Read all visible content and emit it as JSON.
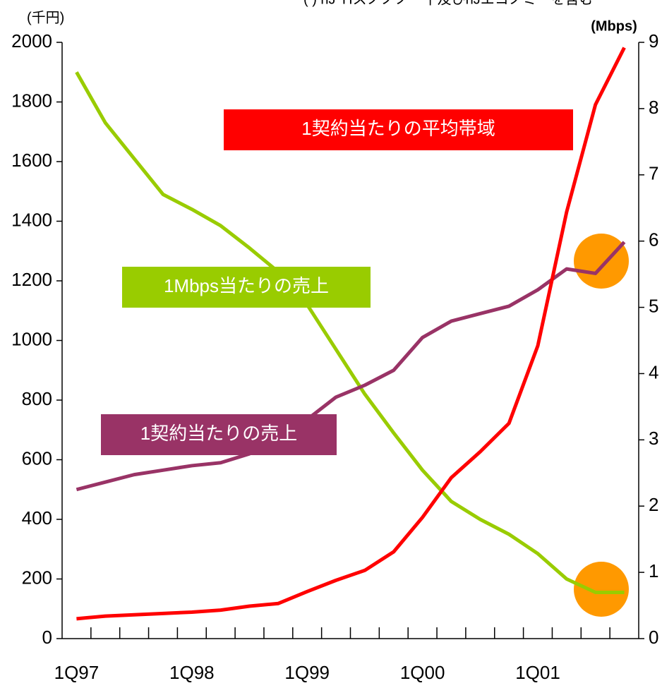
{
  "chart_data": {
    "type": "line",
    "note": "( ) nJ YIスノノノー十及ひnJエコノミーを含む",
    "y_label": "(千円)",
    "y2_label": "(Mbps)",
    "categories": [
      "1Q97",
      null,
      null,
      null,
      "1Q98",
      null,
      null,
      null,
      "1Q99",
      null,
      null,
      null,
      "1Q00",
      null,
      null,
      null,
      "1Q01",
      null,
      null,
      null
    ],
    "ylim": [
      0,
      2000
    ],
    "yticks": [
      0,
      200,
      400,
      600,
      800,
      1000,
      1200,
      1400,
      1600,
      1800,
      2000
    ],
    "y2lim": [
      0,
      9
    ],
    "y2ticks": [
      0,
      1,
      2,
      3,
      4,
      5,
      6,
      7,
      8,
      9
    ],
    "series": [
      {
        "name": "1Mbps当たりの売上",
        "color": "#99cc00",
        "values": [
          1900,
          1730,
          1610,
          1490,
          1440,
          1385,
          1310,
          1230,
          1120,
          970,
          820,
          690,
          565,
          460,
          400,
          350,
          285,
          200,
          155,
          155
        ]
      },
      {
        "name": "1契約当たりの売上",
        "color": "#993366",
        "values": [
          500,
          525,
          550,
          565,
          580,
          590,
          620,
          670,
          735,
          810,
          850,
          900,
          1010,
          1065,
          1090,
          1115,
          1170,
          1240,
          1225,
          1330
        ]
      },
      {
        "name": "1契約当たりの平均帯域",
        "color": "#ff0000",
        "axis": "y2",
        "values": [
          0.3,
          0.34,
          0.36,
          0.38,
          0.4,
          0.43,
          0.49,
          0.53,
          0.71,
          0.88,
          1.03,
          1.31,
          1.83,
          2.43,
          2.82,
          3.25,
          4.42,
          6.44,
          8.06,
          8.92
        ]
      }
    ]
  }
}
